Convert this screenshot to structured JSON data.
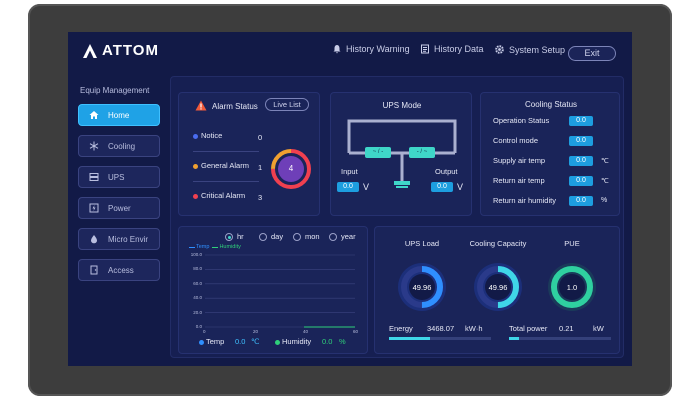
{
  "brand": {
    "name": "ATTOM"
  },
  "nav": {
    "history_warning": "History Warning",
    "history_data": "History Data",
    "system_setup": "System Setup",
    "exit": "Exit"
  },
  "sidebar": {
    "title": "Equip Management",
    "items": [
      {
        "label": "Home",
        "icon": "home-icon",
        "active": true
      },
      {
        "label": "Cooling",
        "icon": "snowflake-icon"
      },
      {
        "label": "UPS",
        "icon": "ups-icon"
      },
      {
        "label": "Power",
        "icon": "power-icon"
      },
      {
        "label": "Micro Envir",
        "icon": "droplet-icon"
      },
      {
        "label": "Access",
        "icon": "door-icon"
      }
    ]
  },
  "alarm": {
    "title": "Alarm Status",
    "live_list": "Live List",
    "notice_label": "Notice",
    "notice_count": "0",
    "general_label": "General Alarm",
    "general_count": "1",
    "critical_label": "Critical Alarm",
    "critical_count": "3",
    "total": "4",
    "colors": {
      "notice": "#4a6cf0",
      "general": "#f0a030",
      "critical": "#f04050"
    }
  },
  "ups_mode": {
    "title": "UPS Mode",
    "switch_left": "~ / -",
    "switch_right": "- / ~",
    "input_label": "Input",
    "input_value": "0.0",
    "input_unit": "V",
    "output_label": "Output",
    "output_value": "0.0",
    "output_unit": "V"
  },
  "cooling": {
    "title": "Cooling Status",
    "rows": [
      {
        "label": "Operation Status",
        "value": "0.0",
        "unit": ""
      },
      {
        "label": "Control mode",
        "value": "0.0",
        "unit": ""
      },
      {
        "label": "Supply air temp",
        "value": "0.0",
        "unit": "℃"
      },
      {
        "label": "Return air temp",
        "value": "0.0",
        "unit": "℃"
      },
      {
        "label": "Return air humidity",
        "value": "0.0",
        "unit": "%"
      }
    ]
  },
  "trend": {
    "ranges": [
      "hr",
      "day",
      "mon",
      "year"
    ],
    "selected": "hr",
    "temp_label": "Temp",
    "temp_value": "0.0",
    "temp_unit": "℃",
    "humidity_label": "Humidity",
    "humidity_value": "0.0",
    "humidity_unit": "%",
    "colors": {
      "temp": "#2f8fff",
      "humidity": "#2fd07a"
    }
  },
  "chart_data": {
    "type": "line",
    "series": [
      {
        "name": "Temp",
        "values": []
      },
      {
        "name": "Humidity",
        "values": []
      }
    ],
    "x_ticks": [
      "0",
      "20",
      "40",
      "60"
    ],
    "y_ticks": [
      "0.0",
      "20.0",
      "40.0",
      "60.0",
      "80.0",
      "100.0"
    ],
    "xlim": [
      0,
      60
    ],
    "ylim": [
      0,
      100
    ],
    "grid": true,
    "legend": "top-left"
  },
  "power": {
    "ups_load_label": "UPS Load",
    "ups_load_value": "49.96",
    "ups_load_fraction": 0.4996,
    "cooling_capacity_label": "Cooling Capacity",
    "cooling_capacity_value": "49.96",
    "cooling_capacity_fraction": 0.4996,
    "pue_label": "PUE",
    "pue_value": "1.0",
    "energy_label": "Energy",
    "energy_value": "3468.07",
    "energy_unit": "kW·h",
    "energy_bar_fraction": 0.4,
    "total_power_label": "Total power",
    "total_power_value": "0.21",
    "total_power_unit": "kW",
    "total_power_bar_fraction": 0.1
  }
}
